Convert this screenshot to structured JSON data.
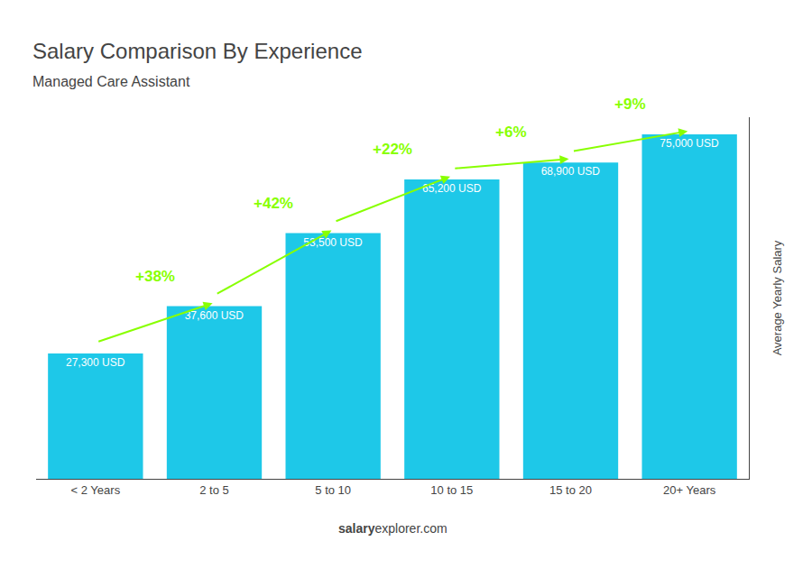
{
  "chart_data": {
    "type": "bar",
    "title": "Salary Comparison By Experience",
    "subtitle": "Managed Care Assistant",
    "ylabel": "Average Yearly Salary",
    "footer": [
      "salary",
      "explorer.com"
    ],
    "categories": [
      "< 2 Years",
      "2 to 5",
      "5 to 10",
      "10 to 15",
      "15 to 20",
      "20+ Years"
    ],
    "values": [
      27300,
      37600,
      53500,
      65200,
      68900,
      75000
    ],
    "value_labels": [
      "27,300 USD",
      "37,600 USD",
      "53,500 USD",
      "65,200 USD",
      "68,900 USD",
      "75,000 USD"
    ],
    "data_labels": true,
    "color": "#1EC8E8",
    "annotations": [
      {
        "text": "+38%",
        "color": "#88FF00"
      },
      {
        "text": "+42%",
        "color": "#88FF00"
      },
      {
        "text": "+22%",
        "color": "#88FF00"
      },
      {
        "text": "+6%",
        "color": "#88FF00"
      },
      {
        "text": "+9%",
        "color": "#88FF00"
      }
    ],
    "ylim": [
      0,
      78750
    ],
    "tick_labels": "x",
    "grid": false
  }
}
